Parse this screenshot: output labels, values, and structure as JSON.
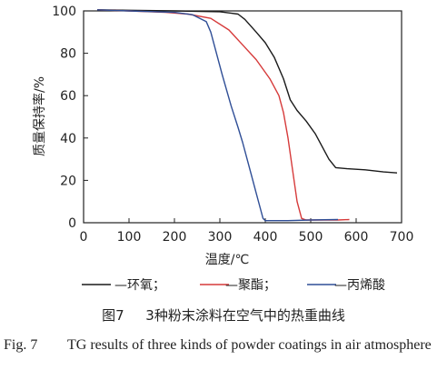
{
  "chart_data": {
    "type": "line",
    "xlabel": "温度/℃",
    "ylabel": "质量保持率/%",
    "xlim": [
      0,
      700
    ],
    "ylim": [
      0,
      100
    ],
    "x_ticks": [
      "0",
      "100",
      "200",
      "300",
      "400",
      "500",
      "600",
      "700"
    ],
    "y_ticks": [
      "0",
      "20",
      "40",
      "60",
      "80",
      "100"
    ],
    "grid": false,
    "legend_placement": "bottom",
    "series": [
      {
        "name": "—环氧；",
        "color": "#1a1a1a",
        "points": [
          [
            30,
            100.5
          ],
          [
            100,
            100.3
          ],
          [
            200,
            100
          ],
          [
            300,
            99.6
          ],
          [
            340,
            98.5
          ],
          [
            355,
            96
          ],
          [
            380,
            90
          ],
          [
            400,
            85
          ],
          [
            420,
            78
          ],
          [
            440,
            68
          ],
          [
            455,
            58
          ],
          [
            470,
            53
          ],
          [
            490,
            48
          ],
          [
            510,
            42
          ],
          [
            540,
            30
          ],
          [
            555,
            26
          ],
          [
            580,
            25.5
          ],
          [
            620,
            25
          ],
          [
            660,
            24
          ],
          [
            690,
            23.5
          ]
        ]
      },
      {
        "name": "—聚酯；",
        "color": "#d63a3a",
        "points": [
          [
            30,
            100.5
          ],
          [
            100,
            100
          ],
          [
            180,
            99.3
          ],
          [
            230,
            98.5
          ],
          [
            280,
            96.5
          ],
          [
            320,
            91
          ],
          [
            350,
            84
          ],
          [
            380,
            77
          ],
          [
            410,
            68
          ],
          [
            430,
            60
          ],
          [
            440,
            52
          ],
          [
            450,
            40
          ],
          [
            460,
            25
          ],
          [
            470,
            10
          ],
          [
            480,
            2
          ],
          [
            490,
            1.3
          ],
          [
            560,
            1.3
          ],
          [
            585,
            1.5
          ]
        ]
      },
      {
        "name": "—丙烯酸",
        "color": "#2f4e96",
        "points": [
          [
            30,
            100.5
          ],
          [
            100,
            100
          ],
          [
            200,
            99.3
          ],
          [
            240,
            98.2
          ],
          [
            270,
            95
          ],
          [
            280,
            90
          ],
          [
            290,
            82
          ],
          [
            305,
            70
          ],
          [
            325,
            55
          ],
          [
            340,
            45
          ],
          [
            350,
            38
          ],
          [
            360,
            30
          ],
          [
            370,
            22
          ],
          [
            380,
            14
          ],
          [
            390,
            6
          ],
          [
            395,
            2
          ],
          [
            400,
            1
          ],
          [
            450,
            1
          ],
          [
            500,
            1.3
          ],
          [
            560,
            1.5
          ]
        ]
      }
    ]
  },
  "legend": {
    "epoxy": "—环氧；",
    "polyester": "—聚酯；",
    "acrylic": "—丙烯酸"
  },
  "caption": {
    "cn_number": "图7",
    "cn_text": "3种粉末涂料在空气中的热重曲线",
    "en_number": "Fig. 7",
    "en_text": "TG results of three kinds of powder coatings in air atmosphere"
  }
}
